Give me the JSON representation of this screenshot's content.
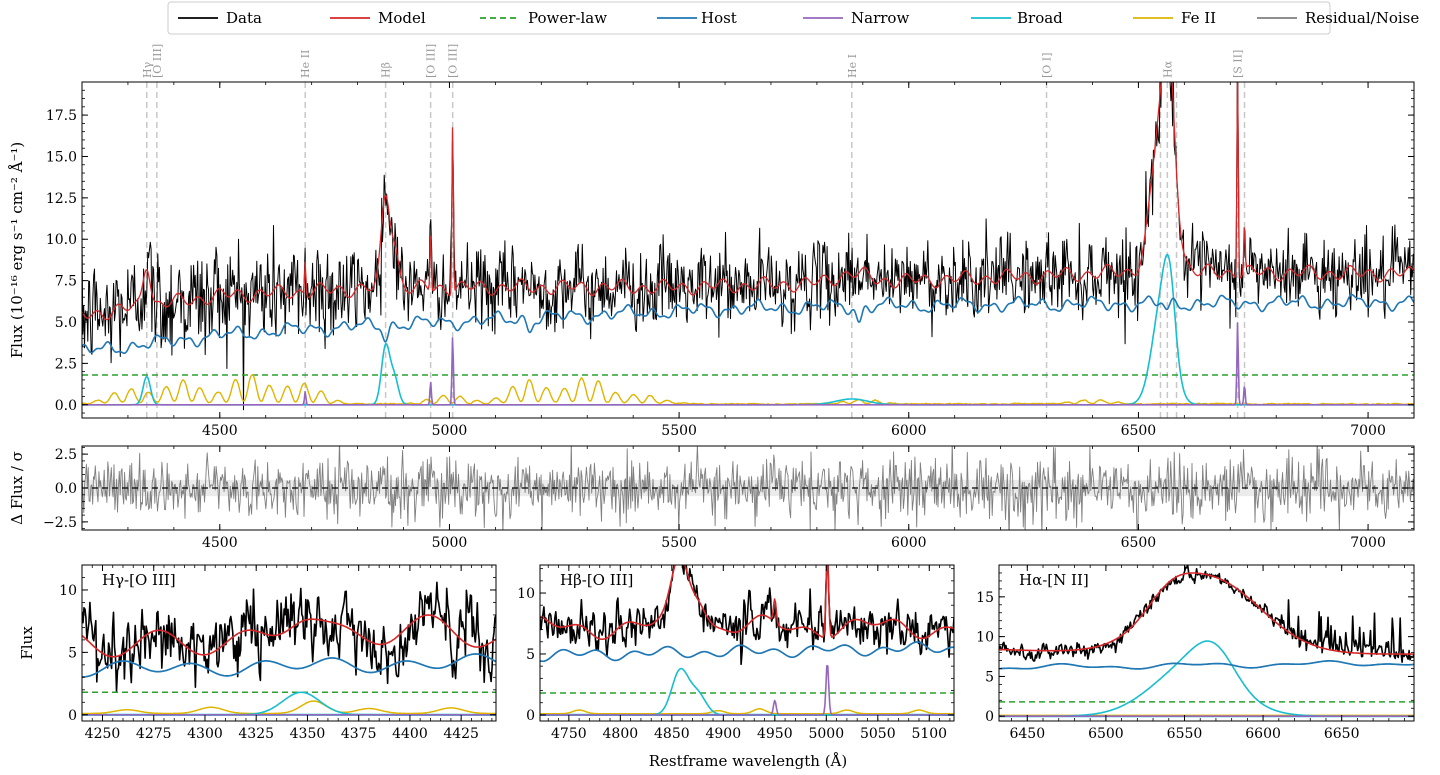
{
  "legend": [
    {
      "label": "Data",
      "color": "#000000",
      "dash": ""
    },
    {
      "label": "Model",
      "color": "#d62728",
      "dash": ""
    },
    {
      "label": "Power-law",
      "color": "#2ca02c",
      "dash": "6,4"
    },
    {
      "label": "Host",
      "color": "#1f77b4",
      "dash": ""
    },
    {
      "label": "Narrow",
      "color": "#9467bd",
      "dash": ""
    },
    {
      "label": "Broad",
      "color": "#17becf",
      "dash": ""
    },
    {
      "label": "Fe II",
      "color": "#e0b400",
      "dash": ""
    },
    {
      "label": "Residual/Noise",
      "color": "#7f7f7f",
      "dash": ""
    }
  ],
  "colors": {
    "data": "#000000",
    "model": "#d62728",
    "powerlaw": "#2ca02c",
    "host": "#1f77b4",
    "narrow": "#9467bd",
    "broad": "#17becf",
    "fe": "#e0b400",
    "resid": "#7f7f7f",
    "vline": "#c8c8c8"
  },
  "line_labels": [
    {
      "label": "Hγ",
      "x": 4341
    },
    {
      "label": "[O III]",
      "x": 4363
    },
    {
      "label": "He II",
      "x": 4686
    },
    {
      "label": "Hβ",
      "x": 4861
    },
    {
      "label": "[O III]",
      "x": 4959
    },
    {
      "label": "[O III]",
      "x": 5007
    },
    {
      "label": "He I",
      "x": 5876
    },
    {
      "label": "[O I]",
      "x": 6300
    },
    {
      "label": "Hα",
      "x": 6563
    },
    {
      "label": "[S II]",
      "x": 6716
    }
  ],
  "extra_vlines": [
    6548,
    6583,
    6731
  ],
  "chart_data": [
    {
      "type": "line",
      "panel": "main",
      "xlim": [
        4200,
        7100
      ],
      "ylim": [
        -0.8,
        19.5
      ],
      "ylabel": "Flux (10⁻¹⁶ erg s⁻¹ cm⁻² Å⁻¹)",
      "xticks": [
        4500,
        5000,
        5500,
        6000,
        6500,
        7000
      ],
      "yticks": [
        0.0,
        2.5,
        5.0,
        7.5,
        10.0,
        12.5,
        15.0,
        17.5
      ],
      "ytick_labels": [
        "0.0",
        "2.5",
        "5.0",
        "7.5",
        "10.0",
        "12.5",
        "15.0",
        "17.5"
      ],
      "powerlaw": 1.8,
      "host_anchors": [
        [
          4200,
          3.2
        ],
        [
          4500,
          4.2
        ],
        [
          4700,
          4.6
        ],
        [
          5000,
          5.0
        ],
        [
          5300,
          5.4
        ],
        [
          5600,
          5.8
        ],
        [
          6000,
          6.0
        ],
        [
          6500,
          6.1
        ],
        [
          7100,
          6.2
        ]
      ],
      "model_anchors": [
        [
          4200,
          5.4
        ],
        [
          4500,
          6.6
        ],
        [
          4800,
          7.0
        ],
        [
          5100,
          7.1
        ],
        [
          5500,
          7.1
        ],
        [
          5900,
          7.4
        ],
        [
          6300,
          7.8
        ],
        [
          6450,
          8.0
        ],
        [
          6700,
          8.0
        ],
        [
          7100,
          7.9
        ]
      ],
      "host_absorptions": [
        [
          4861,
          0.7
        ],
        [
          5175,
          0.6
        ],
        [
          5892,
          0.9
        ],
        [
          6563,
          0.4
        ]
      ],
      "broad": [
        {
          "c": 4341,
          "a": 1.7,
          "s": 8
        },
        {
          "c": 4861,
          "a": 3.5,
          "s": 9
        },
        {
          "c": 4880,
          "a": 1.6,
          "s": 9
        },
        {
          "c": 5876,
          "a": 0.35,
          "s": 35
        },
        {
          "c": 6553,
          "a": 6.4,
          "s": 22
        },
        {
          "c": 6568,
          "a": 3.6,
          "s": 12
        }
      ],
      "narrow": [
        {
          "c": 4686,
          "a": 0.8,
          "s": 1.5
        },
        {
          "c": 4959,
          "a": 1.4,
          "s": 1.5
        },
        {
          "c": 5007,
          "a": 4.2,
          "s": 1.5
        },
        {
          "c": 6716,
          "a": 5.0,
          "s": 1.5
        },
        {
          "c": 6731,
          "a": 1.2,
          "s": 1.5
        }
      ],
      "fe_bumps": [
        [
          4300,
          0.5
        ],
        [
          4420,
          0.8
        ],
        [
          4560,
          1.0
        ],
        [
          4680,
          0.7
        ],
        [
          5000,
          0.3
        ],
        [
          5170,
          0.8
        ],
        [
          5300,
          0.9
        ],
        [
          5420,
          0.3
        ],
        [
          5900,
          0.15
        ],
        [
          6400,
          0.15
        ]
      ]
    },
    {
      "type": "line",
      "panel": "residual",
      "xlim": [
        4200,
        7100
      ],
      "ylim": [
        -3.1,
        3.1
      ],
      "ylabel": "Δ Flux / σ",
      "xticks": [
        4500,
        5000,
        5500,
        6000,
        6500,
        7000
      ],
      "yticks": [
        -2.5,
        0.0,
        2.5
      ],
      "ytick_labels": [
        "−2.5",
        "0.0",
        "2.5"
      ]
    },
    {
      "type": "line",
      "panel": "hgamma",
      "title": "Hγ-[O III]",
      "xlim": [
        4240,
        4442
      ],
      "ylim": [
        -0.5,
        12
      ],
      "ylabel": "Flux",
      "xticks": [
        4250,
        4275,
        4300,
        4325,
        4350,
        4375,
        4400,
        4425
      ],
      "yticks": [
        0,
        5,
        10
      ],
      "ytick_labels": [
        "0",
        "5",
        "10"
      ],
      "powerlaw": 1.8,
      "host": [
        3.6,
        0.45
      ],
      "model": [
        6.4,
        1.0
      ],
      "broad": [
        {
          "c": 4347,
          "a": 1.8,
          "s": 9
        }
      ],
      "narrow": [],
      "fe_bumps": [
        [
          4262,
          0.3
        ],
        [
          4303,
          0.5
        ],
        [
          4353,
          1.0
        ],
        [
          4380,
          0.4
        ],
        [
          4420,
          0.45
        ]
      ]
    },
    {
      "type": "line",
      "panel": "hbeta",
      "title": "Hβ-[O III]",
      "xlim": [
        4722,
        5124
      ],
      "ylim": [
        -0.5,
        12.3
      ],
      "xticks": [
        4750,
        4800,
        4850,
        4900,
        4950,
        5000,
        5050,
        5100
      ],
      "yticks": [
        0,
        5,
        10
      ],
      "ytick_labels": [
        "0",
        "5",
        "10"
      ],
      "powerlaw": 1.8,
      "host": [
        4.9,
        0.3
      ],
      "model": [
        7.2,
        0.4
      ],
      "broad": [
        {
          "c": 4858,
          "a": 3.6,
          "s": 8
        },
        {
          "c": 4875,
          "a": 1.7,
          "s": 8
        }
      ],
      "narrow": [
        {
          "c": 4950,
          "a": 1.2,
          "s": 1.3
        },
        {
          "c": 5001,
          "a": 4.3,
          "s": 1.3
        }
      ],
      "fe_bumps": [
        [
          4760,
          0.3
        ],
        [
          4895,
          0.25
        ],
        [
          4935,
          0.4
        ],
        [
          5020,
          0.3
        ],
        [
          5090,
          0.3
        ]
      ]
    },
    {
      "type": "line",
      "panel": "halpha",
      "title": "Hα-[N II]",
      "xlim": [
        6432,
        6696
      ],
      "ylim": [
        -0.6,
        19
      ],
      "xticks": [
        6450,
        6500,
        6550,
        6600,
        6650
      ],
      "yticks": [
        0,
        5,
        10,
        15
      ],
      "ytick_labels": [
        "0",
        "5",
        "10",
        "15"
      ],
      "powerlaw": 1.8,
      "host": [
        6.1,
        0.15
      ],
      "model": [
        7.8,
        0.0
      ],
      "broad": [
        {
          "c": 6555,
          "a": 6.4,
          "s": 25
        },
        {
          "c": 6569,
          "a": 3.7,
          "s": 13
        }
      ],
      "narrow": [],
      "fe_bumps": []
    }
  ],
  "xlabel": "Restframe wavelength (Å)"
}
